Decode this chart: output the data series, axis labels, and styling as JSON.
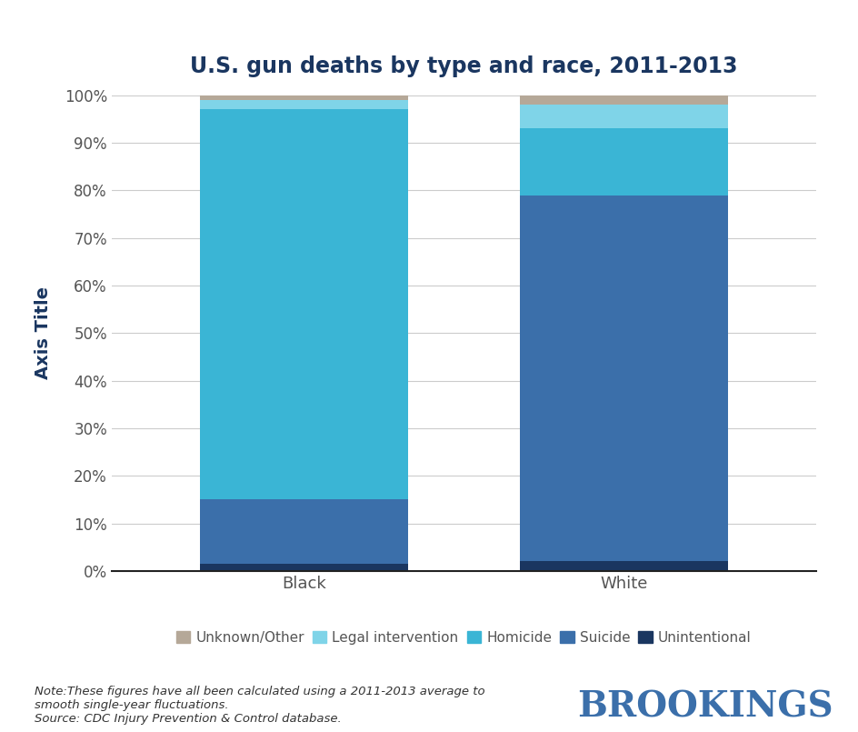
{
  "title": "U.S. gun deaths by type and race, 2011-2013",
  "categories": [
    "Black",
    "White"
  ],
  "series": [
    {
      "name": "Unintentional",
      "values": [
        1.5,
        2.0
      ],
      "color": "#1a3660"
    },
    {
      "name": "Suicide",
      "values": [
        13.5,
        77.0
      ],
      "color": "#3b6faa"
    },
    {
      "name": "Homicide",
      "values": [
        82.0,
        14.0
      ],
      "color": "#3ab5d5"
    },
    {
      "name": "Legal intervention",
      "values": [
        2.0,
        5.0
      ],
      "color": "#7fd4e8"
    },
    {
      "name": "Unknown/Other",
      "values": [
        1.0,
        2.0
      ],
      "color": "#b5a898"
    }
  ],
  "legend_order": [
    4,
    3,
    2,
    1,
    0
  ],
  "ylabel": "Axis Title",
  "ylim": [
    0,
    100
  ],
  "yticks": [
    0,
    10,
    20,
    30,
    40,
    50,
    60,
    70,
    80,
    90,
    100
  ],
  "ytick_labels": [
    "0%",
    "10%",
    "20%",
    "30%",
    "40%",
    "50%",
    "60%",
    "70%",
    "80%",
    "90%",
    "100%"
  ],
  "note": "Note:These figures have all been calculated using a 2011-2013 average to\nsmooth single-year fluctuations.\nSource: CDC Injury Prevention & Control database.",
  "branding": "BROOKINGS",
  "title_color": "#1a3660",
  "ylabel_color": "#1a3660",
  "branding_color": "#3b6faa",
  "bar_width": 0.65,
  "background_color": "#ffffff",
  "figsize": [
    9.45,
    8.05
  ],
  "dpi": 100
}
